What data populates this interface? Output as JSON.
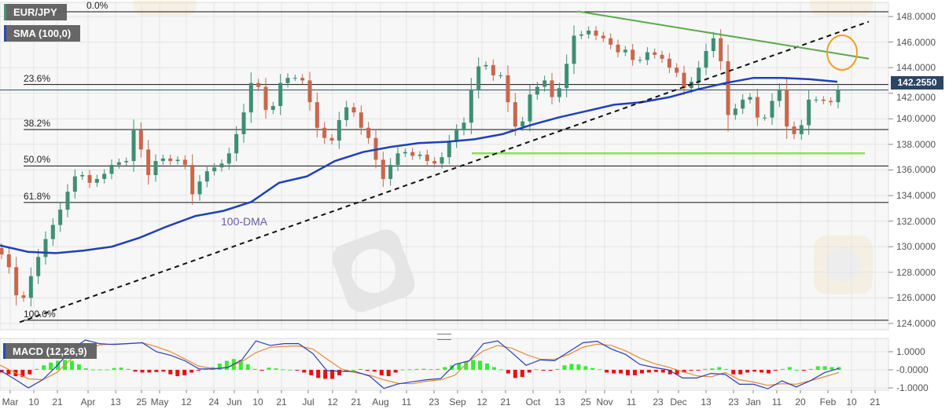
{
  "symbol_label": "EUR/JPY",
  "sma_label": "SMA (100,0)",
  "macd_label": "MACD (12,26,9)",
  "dma_annotation": "100-DMA",
  "watermark": "WikiFX",
  "current_price": "142.2550",
  "colors": {
    "bull": "#3d8f73",
    "bear": "#c9664c",
    "sma": "#1f3fbf",
    "macd": "#2a3fb5",
    "signal": "#e8883a",
    "hist_pos": "#33ee33",
    "hist_neg": "#e81010",
    "resistance": "#5aaa4a",
    "support_zone": "#8fe04a",
    "highlight_circle": "#f0a020",
    "price_tag": "#2c4466"
  },
  "chart_data": [
    {
      "type": "candlestick",
      "title": "EUR/JPY",
      "yaxis": {
        "ticks": [
          "148.0000",
          "146.0000",
          "144.0000",
          "142.0000",
          "140.0000",
          "138.0000",
          "136.0000",
          "134.0000",
          "132.0000",
          "130.0000",
          "128.0000",
          "126.0000",
          "124.0000"
        ],
        "range": [
          123.8,
          148.9
        ],
        "grid": true
      },
      "xaxis": {
        "ticks": [
          "Mar",
          "10",
          "21",
          "Apr",
          "13",
          "25",
          "May",
          "12",
          "24",
          "Jun",
          "10",
          "21",
          "Jul",
          "12",
          "21",
          "Aug",
          "11",
          "23",
          "Sep",
          "12",
          "21",
          "Oct",
          "13",
          "25",
          "Nov",
          "11",
          "23",
          "Dec",
          "13",
          "23",
          "Jan",
          "11",
          "20",
          "Feb",
          "10",
          "21"
        ]
      },
      "closes": [
        129.4,
        128.4,
        126.2,
        126.0,
        127.7,
        129.2,
        130.6,
        131.7,
        132.9,
        134.3,
        135.5,
        135.6,
        135.0,
        135.3,
        135.7,
        136.4,
        136.6,
        136.7,
        139.1,
        137.6,
        135.6,
        136.7,
        136.9,
        136.7,
        136.8,
        136.4,
        134.1,
        135.1,
        135.9,
        136.2,
        136.5,
        137.3,
        138.8,
        140.5,
        142.8,
        142.5,
        140.7,
        141.0,
        142.8,
        143.2,
        143.2,
        143.0,
        141.3,
        139.3,
        138.5,
        138.3,
        139.9,
        140.9,
        140.5,
        139.3,
        138.5,
        136.8,
        135.3,
        136.4,
        137.3,
        137.4,
        137.1,
        137.2,
        136.7,
        136.5,
        137.0,
        138.2,
        139.1,
        139.7,
        142.3,
        144.1,
        144.2,
        143.4,
        143.4,
        141.3,
        139.4,
        139.8,
        141.9,
        142.5,
        143.0,
        141.7,
        142.4,
        144.3,
        146.5,
        146.6,
        146.9,
        146.5,
        146.3,
        145.8,
        145.2,
        145.4,
        144.6,
        144.6,
        145.2,
        145.0,
        144.7,
        144.0,
        143.6,
        142.4,
        142.9,
        144.0,
        145.3,
        146.3,
        144.5,
        140.3,
        140.8,
        141.5,
        141.7,
        140.1,
        140.1,
        141.4,
        142.3,
        139.4,
        138.8,
        139.5,
        141.5,
        141.5,
        141.4,
        141.3,
        142.255
      ],
      "sma_100": [
        130.1,
        129.6,
        129.5,
        129.7,
        130.0,
        130.7,
        131.6,
        132.4,
        132.8,
        133.5,
        135.0,
        135.5,
        136.7,
        137.4,
        137.8,
        138.1,
        138.2,
        138.4,
        138.8,
        139.5,
        140.1,
        140.6,
        141.1,
        141.3,
        141.7,
        142.3,
        142.8,
        143.2,
        143.2,
        143.1,
        142.9
      ],
      "fibonacci": [
        {
          "label": "0.0%",
          "price": 148.37
        },
        {
          "label": "23.6%",
          "price": 142.68
        },
        {
          "label": "38.2%",
          "price": 139.16
        },
        {
          "label": "50.0%",
          "price": 136.31
        },
        {
          "label": "61.8%",
          "price": 133.46
        },
        {
          "label": "100.0%",
          "price": 124.25
        }
      ],
      "support_trendline": {
        "from_price": 124.1,
        "to_price": 147.6,
        "style": "dashed"
      },
      "resistance_trendline": {
        "from_price": 148.4,
        "to_price": 144.7
      },
      "horizontal_support": 137.3,
      "last_price": 142.255
    },
    {
      "type": "macd",
      "title": "MACD (12,26,9)",
      "yaxis": {
        "ticks": [
          "1.0000",
          "-0.0000",
          "-1.0000"
        ]
      },
      "macd": [
        -0.03,
        -0.5,
        -1.0,
        -0.55,
        0.22,
        1.1,
        1.65,
        1.45,
        1.4,
        1.45,
        1.5,
        1.0,
        0.8,
        0.5,
        0.05,
        0.05,
        0.13,
        0.54,
        1.6,
        1.35,
        1.45,
        1.45,
        0.9,
        -0.05,
        -0.08,
        -0.1,
        -0.35,
        -1.03,
        -0.78,
        -0.66,
        -0.55,
        -0.48,
        0.3,
        0.5,
        1.45,
        1.6,
        0.95,
        0.25,
        0.55,
        0.5,
        1.0,
        1.5,
        1.58,
        1.15,
        0.85,
        0.3,
        0.13,
        0.0,
        -0.45,
        -0.45,
        -0.2,
        -0.25,
        -0.8,
        -0.8,
        -1.05,
        -0.61,
        -0.95,
        -0.6,
        -0.15,
        0.08
      ],
      "signal": [
        0.26,
        -0.13,
        -0.5,
        -0.55,
        -0.15,
        0.6,
        1.1,
        1.38,
        1.43,
        1.45,
        1.5,
        1.28,
        1.0,
        0.6,
        0.2,
        0.07,
        0.12,
        0.45,
        0.95,
        1.25,
        1.3,
        1.32,
        1.15,
        0.6,
        0.05,
        -0.16,
        -0.3,
        -0.55,
        -0.75,
        -0.77,
        -0.63,
        -0.55,
        -0.3,
        0.5,
        1.05,
        1.35,
        1.2,
        0.85,
        0.58,
        0.58,
        0.85,
        1.25,
        1.42,
        1.35,
        1.05,
        0.65,
        0.35,
        0.15,
        -0.1,
        -0.33,
        -0.39,
        -0.15,
        -0.55,
        -0.68,
        -0.86,
        -0.77,
        -0.8,
        -0.6,
        -0.38,
        -0.15
      ],
      "histogram": [
        -0.15,
        -0.25,
        -0.35,
        -0.4,
        -0.25,
        0.05,
        0.25,
        0.4,
        0.5,
        0.55,
        0.5,
        0.3,
        0.08,
        0.02,
        0.02,
        0.02,
        0.1,
        0.12,
        0.05,
        -0.1,
        -0.15,
        -0.15,
        -0.12,
        -0.1,
        -0.25,
        -0.35,
        -0.3,
        -0.15,
        -0.05,
        0.05,
        0.15,
        0.35,
        0.5,
        0.6,
        0.55,
        0.3,
        0.05,
        -0.05,
        0.12,
        0.08,
        0.03,
        0.01,
        -0.03,
        -0.15,
        -0.3,
        -0.45,
        -0.5,
        -0.5,
        -0.3,
        -0.1,
        0.0,
        0.05,
        -0.05,
        -0.1,
        -0.3,
        -0.35,
        -0.15,
        0.02,
        0.03,
        0.05,
        0.06,
        0.04,
        0.05,
        0.15,
        0.25,
        0.35,
        0.45,
        0.55,
        0.5,
        0.35,
        0.15,
        0.03,
        -0.2,
        -0.45,
        -0.4,
        -0.15,
        0.03,
        -0.05,
        -0.05,
        0.05,
        0.25,
        0.33,
        0.3,
        0.2,
        0.1,
        0.03,
        -0.15,
        -0.2,
        -0.2,
        -0.3,
        -0.3,
        -0.2,
        -0.15,
        -0.12,
        -0.15,
        -0.25,
        -0.25,
        -0.15,
        -0.05,
        -0.03,
        0.05,
        0.08,
        0.15,
        0.05,
        -0.25,
        -0.25,
        -0.15,
        -0.1,
        -0.15,
        -0.2,
        -0.05,
        0.05,
        0.15,
        0.0,
        -0.05,
        0.05,
        0.2,
        0.2,
        0.15,
        0.15
      ]
    }
  ]
}
